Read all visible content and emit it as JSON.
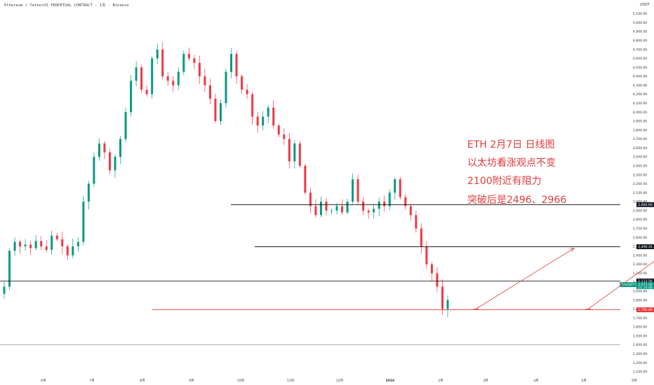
{
  "header": {
    "symbol_line": "Ethereum / TetherUS PERPETUAL CONTRACT · 1天 · Binance",
    "currency": "USDT"
  },
  "annotations": [
    "ETH 2月7日 日线图",
    "以太坊看涨观点不变",
    "2100附近有阻力",
    "突破后是2496、2966"
  ],
  "colors": {
    "up": "#089981",
    "down": "#f23645",
    "annotation": "#e23b3b",
    "line": "#000000",
    "support": "#e23b3b"
  },
  "chart_data": {
    "type": "candlestick",
    "title": "",
    "xlabel": "",
    "ylabel": "",
    "ylim": [
      1100,
      5100
    ],
    "y_ticks": [
      5100,
      5000,
      4900,
      4800,
      4700,
      4600,
      4500,
      4400,
      4300,
      4200,
      4100,
      4000,
      3900,
      3800,
      3700,
      3600,
      3500,
      3400,
      3300,
      3200,
      3100,
      3000,
      2900,
      2800,
      2700,
      2600,
      2500,
      2400,
      2300,
      2200,
      2100,
      2000,
      1900,
      1800,
      1700,
      1600,
      1500,
      1400,
      1300,
      1200,
      1100
    ],
    "x_ticks": [
      "6月",
      "7月",
      "8月",
      "9月",
      "10月",
      "11月",
      "12月",
      "2026",
      "2月",
      "3月",
      "4月",
      "5月",
      "6月"
    ],
    "close_series": [
      2050,
      2450,
      2550,
      2500,
      2520,
      2480,
      2560,
      2500,
      2460,
      2620,
      2580,
      2500,
      2400,
      2500,
      2550,
      3000,
      3200,
      3500,
      3650,
      3550,
      3350,
      3500,
      3700,
      4000,
      4350,
      4500,
      4250,
      4200,
      4600,
      4700,
      4400,
      4350,
      4300,
      4450,
      4650,
      4600,
      4550,
      4400,
      4300,
      4150,
      3900,
      4100,
      4450,
      4650,
      4400,
      4250,
      4200,
      3950,
      3850,
      3950,
      4050,
      3850,
      3750,
      3700,
      3450,
      3650,
      3400,
      3100,
      2950,
      2850,
      3000,
      2900,
      2900,
      2950,
      2880,
      3000,
      3250,
      3000,
      2900,
      2880,
      2920,
      3000,
      2950,
      3100,
      3250,
      3050,
      2950,
      2850,
      2700,
      2500,
      2300,
      2200,
      2050,
      1800,
      1900
    ],
    "levels": [
      {
        "label": "2,966.69",
        "value": 2966.69,
        "style": "black"
      },
      {
        "label": "2,496.35",
        "value": 2496.35,
        "style": "black"
      },
      {
        "label": "2,113.56",
        "value": 2113.56,
        "style": "black"
      },
      {
        "label": "1,791.40",
        "value": 1791.4,
        "style": "red"
      }
    ],
    "gray_line": 1400,
    "current_price": {
      "label": "ETHUSDT.P",
      "price": "2,073.06",
      "timer": "21:10:09",
      "value": 2073
    },
    "projections": [
      {
        "from": [
          2,
          1800
        ],
        "to": [
          9,
          2480
        ]
      },
      {
        "from": [
          10,
          1800
        ],
        "to": [
          20,
          2930
        ]
      }
    ]
  }
}
